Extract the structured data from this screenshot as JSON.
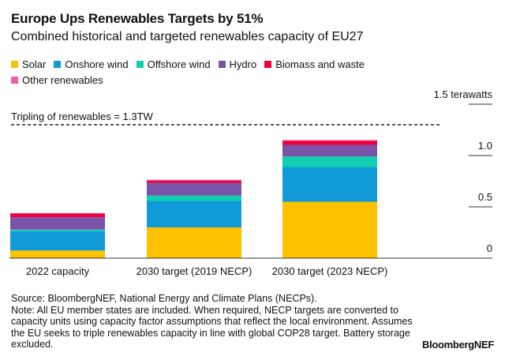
{
  "title": "Europe Ups Renewables Targets by 51%",
  "subtitle": "Combined historical and targeted renewables capacity of EU27",
  "source": "Source: BloombergNEF, National Energy and Climate Plans (NECPs).",
  "note": "Note: All EU member states are included. When required, NECP targets are converted to capacity units using capacity factor assumptions that reflect the local environment. Assumes the EU seeks to triple renewables capacity in line with global COP28 target. Battery storage excluded.",
  "brand": "BloombergNEF",
  "chart_data": {
    "type": "bar",
    "stacked": true,
    "categories": [
      "2022 capacity",
      "2030 target (2019 NECP)",
      "2030 target (2023 NECP)"
    ],
    "ylabel": "1.5 terawatts",
    "yunit": "terawatts",
    "ylim": [
      0,
      1.5
    ],
    "yticks": [
      0,
      0.5,
      1.0,
      1.5
    ],
    "ytick_labels": [
      "0",
      "0.5",
      "1.0",
      "1.5 terawatts"
    ],
    "legend": "top-left",
    "grid": false,
    "series": [
      {
        "name": "Solar",
        "color": "#fcc200",
        "values": [
          0.075,
          0.3,
          0.55
        ]
      },
      {
        "name": "Onshore wind",
        "color": "#109bd8",
        "values": [
          0.188,
          0.258,
          0.338
        ]
      },
      {
        "name": "Offshore wind",
        "color": "#0fd1b0",
        "values": [
          0.015,
          0.052,
          0.103
        ]
      },
      {
        "name": "Hydro",
        "color": "#7a52a8",
        "values": [
          0.121,
          0.124,
          0.113
        ]
      },
      {
        "name": "Biomass and waste",
        "color": "#f0003c",
        "values": [
          0.036,
          0.02,
          0.041
        ]
      },
      {
        "name": "Other renewables",
        "color": "#ee5ea6",
        "values": [
          0.004,
          0.01,
          0.005
        ]
      }
    ],
    "reference_line": {
      "value": 1.3,
      "label": "Tripling of renewables = 1.3TW",
      "style": "dashed"
    }
  }
}
